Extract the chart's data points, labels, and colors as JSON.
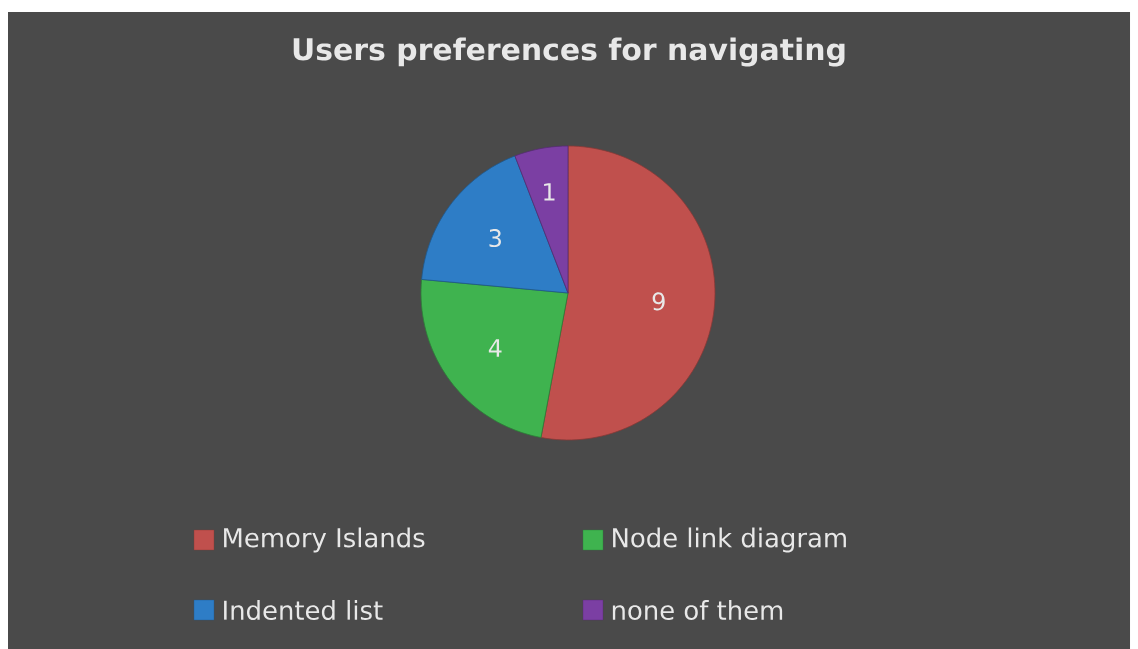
{
  "chart_data": {
    "type": "pie",
    "title": "Users preferences for navigating",
    "categories": [
      "Memory Islands",
      "Node link diagram",
      "Indented list",
      "none of them"
    ],
    "values": [
      9,
      4,
      3,
      1
    ],
    "colors": [
      "#c0504d",
      "#3fb34f",
      "#2e7dc6",
      "#7b3fa3"
    ],
    "data_labels": true,
    "legend": "bottom"
  }
}
